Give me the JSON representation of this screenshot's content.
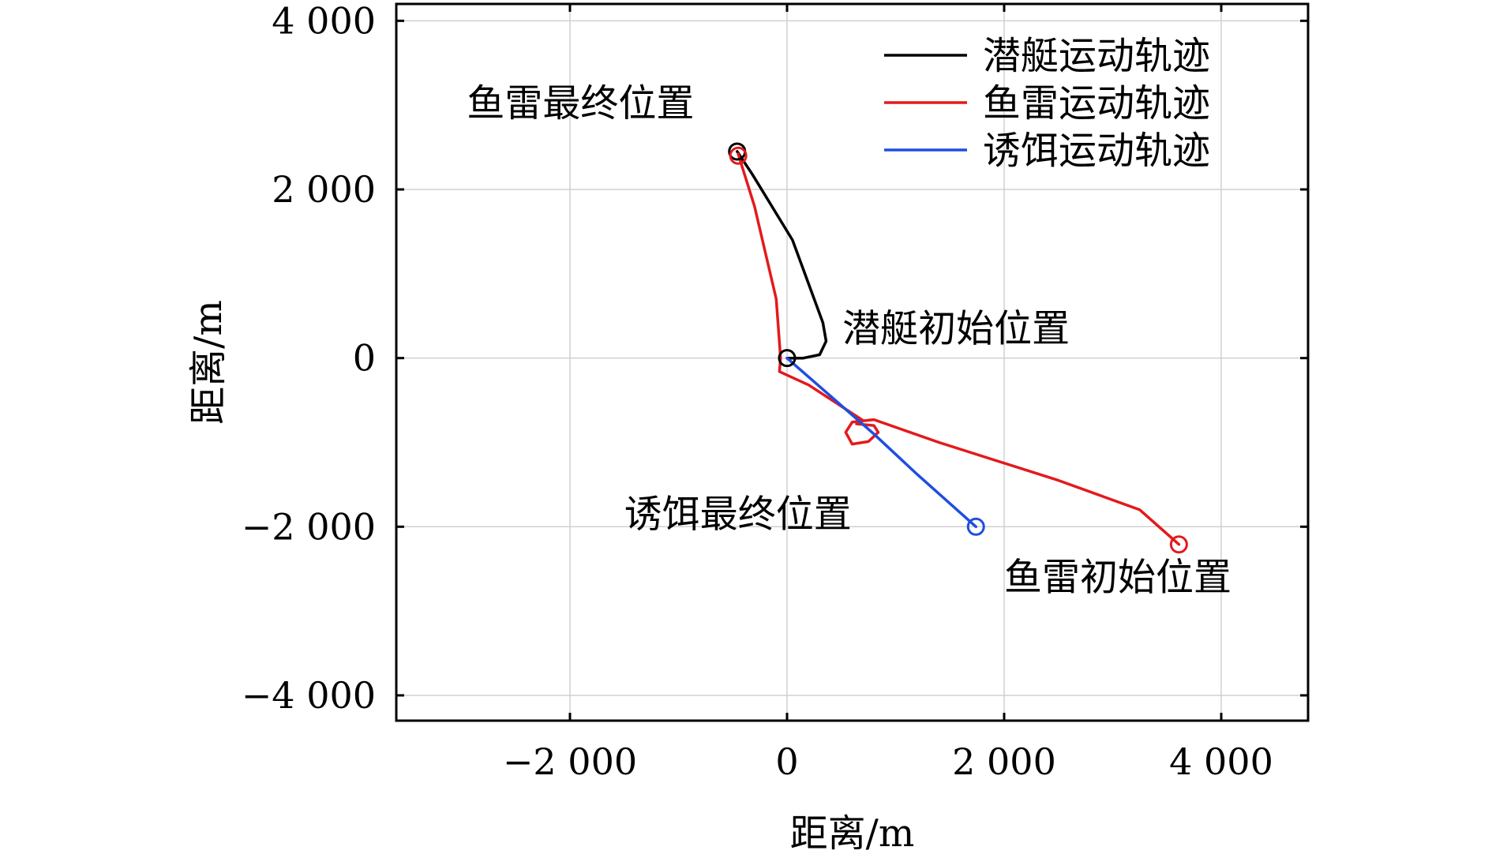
{
  "chart_data": {
    "type": "line",
    "title": "",
    "xlabel": "距离/m",
    "ylabel": "距离/m",
    "xlim": [
      -3600,
      4800
    ],
    "ylim": [
      -4300,
      4200
    ],
    "xticks": [
      -2000,
      0,
      2000,
      4000
    ],
    "yticks": [
      -4000,
      -2000,
      0,
      2000,
      4000
    ],
    "xtick_labels": [
      "−2 000",
      "0",
      "2 000",
      "4 000"
    ],
    "ytick_labels": [
      "−4 000",
      "−2 000",
      "0",
      "2 000",
      "4 000"
    ],
    "grid": true,
    "legend_position": "top-right",
    "series": [
      {
        "name": "潜艇运动轨迹",
        "color": "#000000",
        "x": [
          0,
          150,
          300,
          360,
          330,
          50,
          -320,
          -460
        ],
        "y": [
          0,
          0,
          40,
          200,
          420,
          1400,
          2180,
          2450
        ]
      },
      {
        "name": "鱼雷运动轨迹",
        "color": "#e31a1c",
        "x": [
          3610,
          3250,
          2500,
          1400,
          800,
          600,
          540,
          600,
          750,
          840,
          800,
          640,
          700,
          200,
          -70,
          -60,
          -100,
          -300,
          -450
        ],
        "y": [
          -2210,
          -1800,
          -1450,
          -1000,
          -730,
          -760,
          -880,
          -1020,
          -990,
          -880,
          -800,
          -780,
          -740,
          -320,
          -160,
          0,
          700,
          1800,
          2420
        ]
      },
      {
        "name": "诱饵运动轨迹",
        "color": "#1f4ee0",
        "x": [
          0,
          400,
          800,
          1200,
          1740
        ],
        "y": [
          0,
          -450,
          -900,
          -1380,
          -2000
        ]
      }
    ],
    "markers": [
      {
        "x": 0,
        "y": 0,
        "color": "#000000"
      },
      {
        "x": -460,
        "y": 2450,
        "color": "#000000"
      },
      {
        "x": -450,
        "y": 2400,
        "color": "#e31a1c"
      },
      {
        "x": 3610,
        "y": -2210,
        "color": "#e31a1c"
      },
      {
        "x": 1740,
        "y": -2000,
        "color": "#1f4ee0"
      }
    ],
    "annotations": [
      {
        "text": "鱼雷最终位置",
        "x": -2950,
        "y": 2870
      },
      {
        "text": "潜艇初始位置",
        "x": 510,
        "y": 200
      },
      {
        "text": "诱饵最终位置",
        "x": -1500,
        "y": -2000
      },
      {
        "text": "鱼雷初始位置",
        "x": 2000,
        "y": -2750
      }
    ]
  }
}
